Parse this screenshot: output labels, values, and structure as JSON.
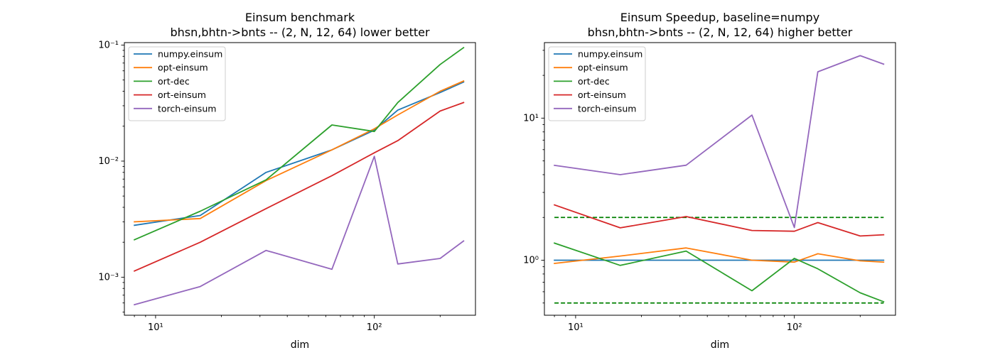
{
  "chart_data": [
    {
      "type": "line",
      "title": "Einsum benchmark",
      "subtitle": "bhsn,bhtn->bnts -- (2, N, 12, 64) lower better",
      "xlabel": "dim",
      "ylabel": "",
      "xscale": "log",
      "yscale": "log",
      "xlim": [
        7.2,
        290
      ],
      "ylim": [
        0.00047,
        0.105
      ],
      "x": [
        8,
        16,
        32,
        64,
        100,
        128,
        200,
        256
      ],
      "legend_position": "top-left",
      "grid": false,
      "series": [
        {
          "name": "numpy.einsum",
          "color": "#1f77b4",
          "values": [
            0.0028,
            0.0034,
            0.008,
            0.0125,
            0.0185,
            0.0275,
            0.039,
            0.048
          ]
        },
        {
          "name": "opt-einsum",
          "color": "#ff7f0e",
          "values": [
            0.003,
            0.0032,
            0.0068,
            0.0125,
            0.019,
            0.025,
            0.04,
            0.049
          ]
        },
        {
          "name": "ort-dec",
          "color": "#2ca02c",
          "values": [
            0.0021,
            0.0037,
            0.0069,
            0.0205,
            0.018,
            0.032,
            0.068,
            0.095
          ]
        },
        {
          "name": "ort-einsum",
          "color": "#d62728",
          "values": [
            0.00113,
            0.002,
            0.0039,
            0.0075,
            0.0118,
            0.015,
            0.027,
            0.032
          ]
        },
        {
          "name": "torch-einsum",
          "color": "#9467bd",
          "values": [
            0.00058,
            0.00083,
            0.0017,
            0.00117,
            0.011,
            0.0013,
            0.00145,
            0.00205
          ]
        }
      ],
      "x_tick_labels": [
        "10¹",
        "10²"
      ],
      "y_tick_labels": [
        "10⁻³",
        "10⁻²",
        "10⁻¹"
      ]
    },
    {
      "type": "line",
      "title": "Einsum Speedup, baseline=numpy",
      "subtitle": "bhsn,bhtn->bnts -- (2, N, 12, 64) higher better",
      "xlabel": "dim",
      "ylabel": "",
      "xscale": "log",
      "yscale": "log",
      "xlim": [
        7.2,
        290
      ],
      "ylim": [
        0.41,
        34
      ],
      "x": [
        8,
        16,
        32,
        64,
        100,
        128,
        200,
        256
      ],
      "legend_position": "top-left",
      "grid": false,
      "reference_lines": [
        {
          "y": 2.0,
          "color": "#008000",
          "style": "dashed"
        },
        {
          "y": 0.5,
          "color": "#008000",
          "style": "dashed"
        }
      ],
      "series": [
        {
          "name": "numpy.einsum",
          "color": "#1f77b4",
          "values": [
            1.0,
            1.0,
            1.0,
            1.0,
            1.0,
            1.0,
            1.0,
            1.0
          ]
        },
        {
          "name": "opt-einsum",
          "color": "#ff7f0e",
          "values": [
            0.95,
            1.07,
            1.22,
            1.0,
            0.97,
            1.11,
            0.99,
            0.97
          ]
        },
        {
          "name": "ort-dec",
          "color": "#2ca02c",
          "values": [
            1.32,
            0.92,
            1.16,
            0.61,
            1.03,
            0.87,
            0.59,
            0.51
          ]
        },
        {
          "name": "ort-einsum",
          "color": "#d62728",
          "values": [
            2.45,
            1.69,
            2.03,
            1.62,
            1.6,
            1.84,
            1.48,
            1.51
          ]
        },
        {
          "name": "torch-einsum",
          "color": "#9467bd",
          "values": [
            4.65,
            4.0,
            4.66,
            10.5,
            1.7,
            21.2,
            27.5,
            24.0
          ]
        }
      ],
      "x_tick_labels": [
        "10¹",
        "10²"
      ],
      "y_tick_labels": [
        "10⁰",
        "10¹"
      ]
    }
  ]
}
